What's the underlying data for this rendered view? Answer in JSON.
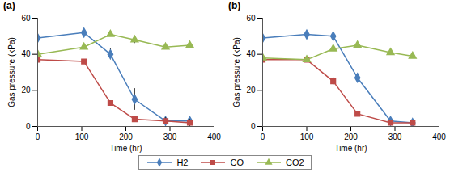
{
  "chart_data": [
    {
      "type": "line",
      "title": "(a)",
      "x_label": "Time (hr)",
      "y_label": "Gas pressure (kPa)",
      "xlim": [
        0,
        400
      ],
      "xticks": [
        0,
        100,
        200,
        300,
        400
      ],
      "ylim": [
        0,
        60
      ],
      "yticks": [
        0,
        20,
        40,
        60
      ],
      "grid": false,
      "legend": "bottom",
      "x": [
        0,
        105,
        165,
        220,
        290,
        345
      ],
      "series": [
        {
          "name": "H2",
          "color": "#4a7ebb",
          "marker": "diamond",
          "values": [
            49,
            52,
            40,
            15,
            3,
            3
          ],
          "errors": [
            null,
            1,
            3,
            6,
            null,
            null
          ]
        },
        {
          "name": "CO",
          "color": "#be4b48",
          "marker": "square",
          "values": [
            37,
            36,
            13,
            4,
            3,
            2
          ],
          "errors": [
            null,
            null,
            1,
            null,
            2,
            2
          ]
        },
        {
          "name": "CO2",
          "color": "#98b954",
          "marker": "triangle",
          "values": [
            40,
            44,
            51,
            48,
            44,
            45
          ],
          "errors": [
            null,
            null,
            1,
            2,
            null,
            null
          ]
        }
      ]
    },
    {
      "type": "line",
      "title": "(b)",
      "x_label": "Time (hr)",
      "y_label": "Gas pressure (kPa)",
      "xlim": [
        0,
        400
      ],
      "xticks": [
        0,
        100,
        200,
        300,
        400
      ],
      "ylim": [
        0,
        60
      ],
      "yticks": [
        0,
        20,
        40,
        60
      ],
      "grid": false,
      "legend": "bottom",
      "x": [
        0,
        100,
        160,
        215,
        290,
        340
      ],
      "series": [
        {
          "name": "H2",
          "color": "#4a7ebb",
          "marker": "diamond",
          "values": [
            49,
            51,
            50,
            27,
            3,
            2
          ],
          "errors": [
            null,
            1,
            null,
            2,
            1,
            null
          ]
        },
        {
          "name": "CO",
          "color": "#be4b48",
          "marker": "square",
          "values": [
            37,
            37,
            25,
            7,
            2,
            2
          ],
          "errors": [
            null,
            null,
            2,
            1,
            null,
            null
          ]
        },
        {
          "name": "CO2",
          "color": "#98b954",
          "marker": "triangle",
          "values": [
            38,
            37,
            43,
            45,
            41,
            39
          ],
          "errors": [
            null,
            null,
            null,
            1,
            null,
            null
          ]
        }
      ]
    }
  ]
}
